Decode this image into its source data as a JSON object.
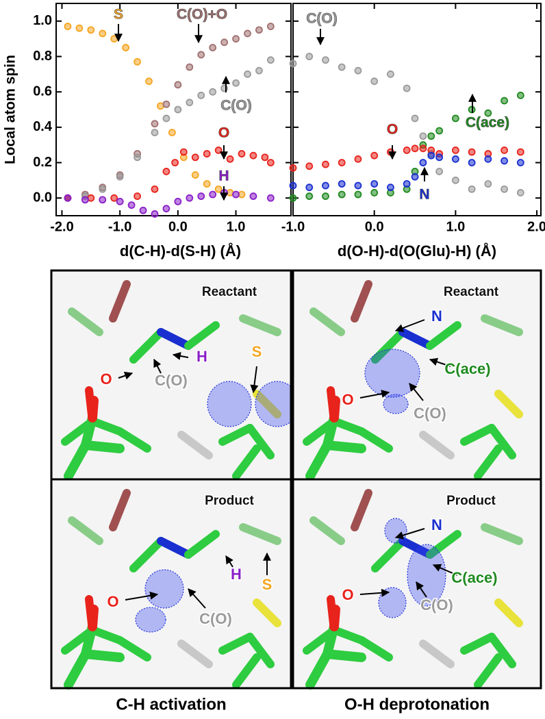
{
  "chart_data": [
    {
      "type": "scatter",
      "ylabel": "Local atom spin",
      "xlabel": "d(C-H)-d(S-H) (Å)",
      "xlim": [
        -2.1,
        1.95
      ],
      "ylim": [
        -0.1,
        1.1
      ],
      "xticks": [
        {
          "value": -2,
          "label": "-2.0"
        },
        {
          "value": -1,
          "label": "-1.0"
        },
        {
          "value": 0,
          "label": "0.0"
        },
        {
          "value": 1,
          "label": "1.0"
        }
      ],
      "yticks": [
        {
          "value": 0,
          "label": "0.0"
        },
        0.2,
        0.4,
        0.6,
        0.8,
        {
          "value": 1,
          "label": "1.0"
        }
      ],
      "series": [
        {
          "name": "S",
          "color": "#f5a623",
          "x": [
            -1.9,
            -1.7,
            -1.5,
            -1.3,
            -1.1,
            -0.9,
            -0.7,
            -0.5,
            -0.3,
            -0.1,
            0.1,
            0.3,
            0.5,
            0.7,
            0.9,
            1.1
          ],
          "values": [
            0.97,
            0.96,
            0.95,
            0.93,
            0.9,
            0.85,
            0.77,
            0.66,
            0.52,
            0.37,
            0.23,
            0.13,
            0.08,
            0.05,
            0.03,
            0.02
          ]
        },
        {
          "name": "C(O)+O",
          "color": "#a07070",
          "x": [
            -1.9,
            -1.6,
            -1.3,
            -1.0,
            -0.7,
            -0.4,
            -0.2,
            0,
            0.2,
            0.4,
            0.6,
            0.8,
            1.0,
            1.2,
            1.4,
            1.6
          ],
          "values": [
            0,
            0.02,
            0.06,
            0.13,
            0.25,
            0.42,
            0.53,
            0.64,
            0.74,
            0.81,
            0.85,
            0.88,
            0.9,
            0.93,
            0.95,
            0.97
          ]
        },
        {
          "name": "C(O)",
          "color": "#9a9a9a",
          "x": [
            -1.9,
            -1.6,
            -1.3,
            -1.0,
            -0.7,
            -0.4,
            -0.2,
            0,
            0.2,
            0.4,
            0.6,
            0.8,
            1.0,
            1.2,
            1.4,
            1.6
          ],
          "values": [
            0,
            0.01,
            0.05,
            0.12,
            0.23,
            0.37,
            0.45,
            0.5,
            0.54,
            0.58,
            0.6,
            0.62,
            0.65,
            0.7,
            0.72,
            0.78
          ]
        },
        {
          "name": "O",
          "color": "#e8231c",
          "x": [
            -1.9,
            -1.5,
            -1.1,
            -0.7,
            -0.4,
            -0.2,
            -0.05,
            0.1,
            0.3,
            0.5,
            0.7,
            0.9,
            1.1,
            1.3,
            1.5,
            1.6
          ],
          "values": [
            0,
            0,
            0,
            0.01,
            0.05,
            0.15,
            0.2,
            0.26,
            0.23,
            0.25,
            0.27,
            0.22,
            0.25,
            0.24,
            0.23,
            0.2
          ]
        },
        {
          "name": "H",
          "color": "#8a1fc8",
          "x": [
            -1.9,
            -1.6,
            -1.3,
            -1.0,
            -0.8,
            -0.6,
            -0.4,
            -0.2,
            0,
            0.2,
            0.4,
            0.6,
            0.8,
            1.0,
            1.3,
            1.6
          ],
          "values": [
            0,
            -0.01,
            -0.01,
            -0.02,
            -0.04,
            -0.07,
            -0.09,
            -0.06,
            -0.02,
            0,
            0.01,
            0.02,
            0.03,
            0.02,
            0.01,
            0
          ]
        }
      ]
    },
    {
      "type": "scatter",
      "xlabel": "d(O-H)-d(O(Glu)-H) (Å)",
      "xlim": [
        -1.0,
        2.05
      ],
      "ylim": [
        -0.1,
        1.1
      ],
      "xticks": [
        {
          "value": -1,
          "label": "-1.0"
        },
        {
          "value": 0,
          "label": "0.0"
        },
        {
          "value": 1,
          "label": "1.0"
        },
        {
          "value": 2,
          "label": "2.0"
        }
      ],
      "yticks": [
        0,
        0.2,
        0.4,
        0.6,
        0.8,
        1
      ],
      "series": [
        {
          "name": "C(O)",
          "color": "#9a9a9a",
          "x": [
            -1,
            -0.8,
            -0.6,
            -0.4,
            -0.2,
            0,
            0.2,
            0.4,
            0.5,
            0.6,
            0.7,
            0.8,
            1.0,
            1.2,
            1.4,
            1.6,
            1.8
          ],
          "values": [
            0.76,
            0.8,
            0.78,
            0.74,
            0.72,
            0.66,
            0.7,
            0.62,
            0.45,
            0.35,
            0.25,
            0.15,
            0.1,
            0.05,
            0.08,
            0.05,
            0.03
          ]
        },
        {
          "name": "C(ace)",
          "color": "#1f8a1f",
          "x": [
            -1,
            -0.8,
            -0.6,
            -0.4,
            -0.2,
            0,
            0.2,
            0.4,
            0.5,
            0.6,
            0.7,
            0.8,
            1.0,
            1.2,
            1.4,
            1.6,
            1.8
          ],
          "values": [
            0,
            0.01,
            0.01,
            0.02,
            0.02,
            0.03,
            0.03,
            0.05,
            0.15,
            0.3,
            0.35,
            0.38,
            0.45,
            0.5,
            0.48,
            0.55,
            0.58
          ]
        },
        {
          "name": "O",
          "color": "#e8231c",
          "x": [
            -1,
            -0.8,
            -0.6,
            -0.4,
            -0.2,
            0,
            0.2,
            0.4,
            0.5,
            0.6,
            0.7,
            0.8,
            1.0,
            1.2,
            1.4,
            1.6,
            1.8
          ],
          "values": [
            0.17,
            0.18,
            0.19,
            0.2,
            0.22,
            0.24,
            0.26,
            0.27,
            0.28,
            0.28,
            0.27,
            0.25,
            0.27,
            0.26,
            0.25,
            0.27,
            0.26
          ]
        },
        {
          "name": "N",
          "color": "#1a2fd0",
          "x": [
            -1,
            -0.8,
            -0.6,
            -0.4,
            -0.2,
            0,
            0.2,
            0.4,
            0.5,
            0.6,
            0.7,
            0.8,
            1.0,
            1.2,
            1.4,
            1.6,
            1.8
          ],
          "values": [
            0.07,
            0.06,
            0.07,
            0.08,
            0.07,
            0.08,
            0.06,
            0.08,
            0.12,
            0.2,
            0.24,
            0.23,
            0.22,
            0.2,
            0.22,
            0.21,
            0.2
          ]
        }
      ]
    }
  ],
  "panels": [
    {
      "title": "Reactant",
      "labels": [
        {
          "text": "H",
          "color": "#8a1fc8"
        },
        {
          "text": "S",
          "color": "#f5a623"
        },
        {
          "text": "O",
          "color": "#e8231c"
        },
        {
          "text": "C(O)",
          "color": "#9a9a9a"
        }
      ]
    },
    {
      "title": "Reactant",
      "labels": [
        {
          "text": "N",
          "color": "#1a2fd0"
        },
        {
          "text": "C(ace)",
          "color": "#1f8a1f"
        },
        {
          "text": "O",
          "color": "#e8231c"
        },
        {
          "text": "C(O)",
          "color": "#9a9a9a"
        }
      ]
    },
    {
      "title": "Product",
      "labels": [
        {
          "text": "H",
          "color": "#8a1fc8"
        },
        {
          "text": "S",
          "color": "#f5a623"
        },
        {
          "text": "O",
          "color": "#e8231c"
        },
        {
          "text": "C(O)",
          "color": "#9a9a9a"
        }
      ]
    },
    {
      "title": "Product",
      "labels": [
        {
          "text": "N",
          "color": "#1a2fd0"
        },
        {
          "text": "C(ace)",
          "color": "#1f8a1f"
        },
        {
          "text": "O",
          "color": "#e8231c"
        },
        {
          "text": "C(O)",
          "color": "#9a9a9a"
        }
      ]
    }
  ],
  "captions": [
    "C-H activation",
    "O-H deprotonation"
  ]
}
